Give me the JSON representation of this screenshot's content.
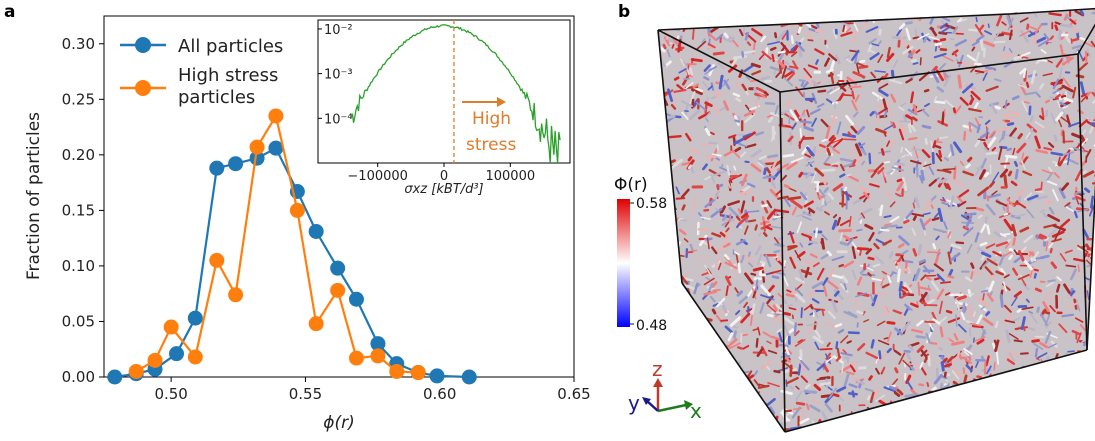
{
  "panel_a": {
    "letter": "a",
    "chart_data": {
      "type": "line",
      "xlabel": "ϕ(r)",
      "ylabel": "Fraction of particles",
      "xlim": [
        0.475,
        0.65
      ],
      "ylim": [
        0.0,
        0.325
      ],
      "xticks": [
        0.5,
        0.55,
        0.6,
        0.65
      ],
      "xtick_labels": [
        "0.50",
        "0.55",
        "0.60",
        "0.65"
      ],
      "yticks": [
        0.0,
        0.05,
        0.1,
        0.15,
        0.2,
        0.25,
        0.3
      ],
      "ytick_labels": [
        "0.00",
        "0.05",
        "0.10",
        "0.15",
        "0.20",
        "0.25",
        "0.30"
      ],
      "series": [
        {
          "name": "All particles",
          "legend_lines": [
            "All particles"
          ],
          "color": "#1f77b4",
          "x": [
            0.479,
            0.487,
            0.494,
            0.502,
            0.509,
            0.517,
            0.524,
            0.532,
            0.539,
            0.547,
            0.554,
            0.562,
            0.569,
            0.577,
            0.584,
            0.592,
            0.599,
            0.611
          ],
          "y": [
            0.0,
            0.003,
            0.007,
            0.021,
            0.053,
            0.188,
            0.192,
            0.197,
            0.206,
            0.167,
            0.131,
            0.098,
            0.07,
            0.03,
            0.012,
            0.004,
            0.001,
            0.0
          ]
        },
        {
          "name": "High stress particles",
          "legend_lines": [
            "High stress",
            "particles"
          ],
          "color": "#ff7f0e",
          "x": [
            0.487,
            0.494,
            0.5,
            0.509,
            0.517,
            0.524,
            0.532,
            0.539,
            0.547,
            0.554,
            0.562,
            0.569,
            0.577,
            0.584,
            0.592
          ],
          "y": [
            0.005,
            0.015,
            0.045,
            0.018,
            0.105,
            0.074,
            0.207,
            0.235,
            0.15,
            0.048,
            0.078,
            0.017,
            0.019,
            0.005,
            0.004
          ]
        }
      ],
      "inset": {
        "type": "line",
        "xlabel": "σxz [kBT/d³]",
        "xticks": [
          -100000,
          0,
          100000
        ],
        "xtick_labels": [
          "−100000",
          "0",
          "100000"
        ],
        "ytick_labels": [
          "10⁻²",
          "10⁻³",
          "10⁻⁴"
        ],
        "yticks_log": [
          -2,
          -3,
          -4
        ],
        "xlim": [
          -190000,
          190000
        ],
        "ylim_log": [
          -5.0,
          -1.8
        ],
        "threshold": 15000,
        "line_color": "#2ca02c",
        "annotation_color": "#e07b2a",
        "annotation_lines": [
          "High",
          "stress"
        ],
        "distribution": {
          "center": 0,
          "peak_log": -1.93,
          "curvature_log_per_1e5sq": 1.05,
          "x_range": [
            -140000,
            175000
          ]
        }
      }
    }
  },
  "panel_b": {
    "letter": "b",
    "colorbar": {
      "title": "Φ(r)",
      "max_label": "0.58",
      "min_label": "0.48",
      "high_color": "#e00000",
      "mid_color": "#ffffff",
      "low_color": "#0000ff"
    },
    "axes_triad": {
      "z_label": "z",
      "y_label": "y",
      "x_label": "x",
      "z_color": "#c0392b",
      "y_color": "#1a1a8c",
      "x_color": "#1e7b1e"
    }
  }
}
